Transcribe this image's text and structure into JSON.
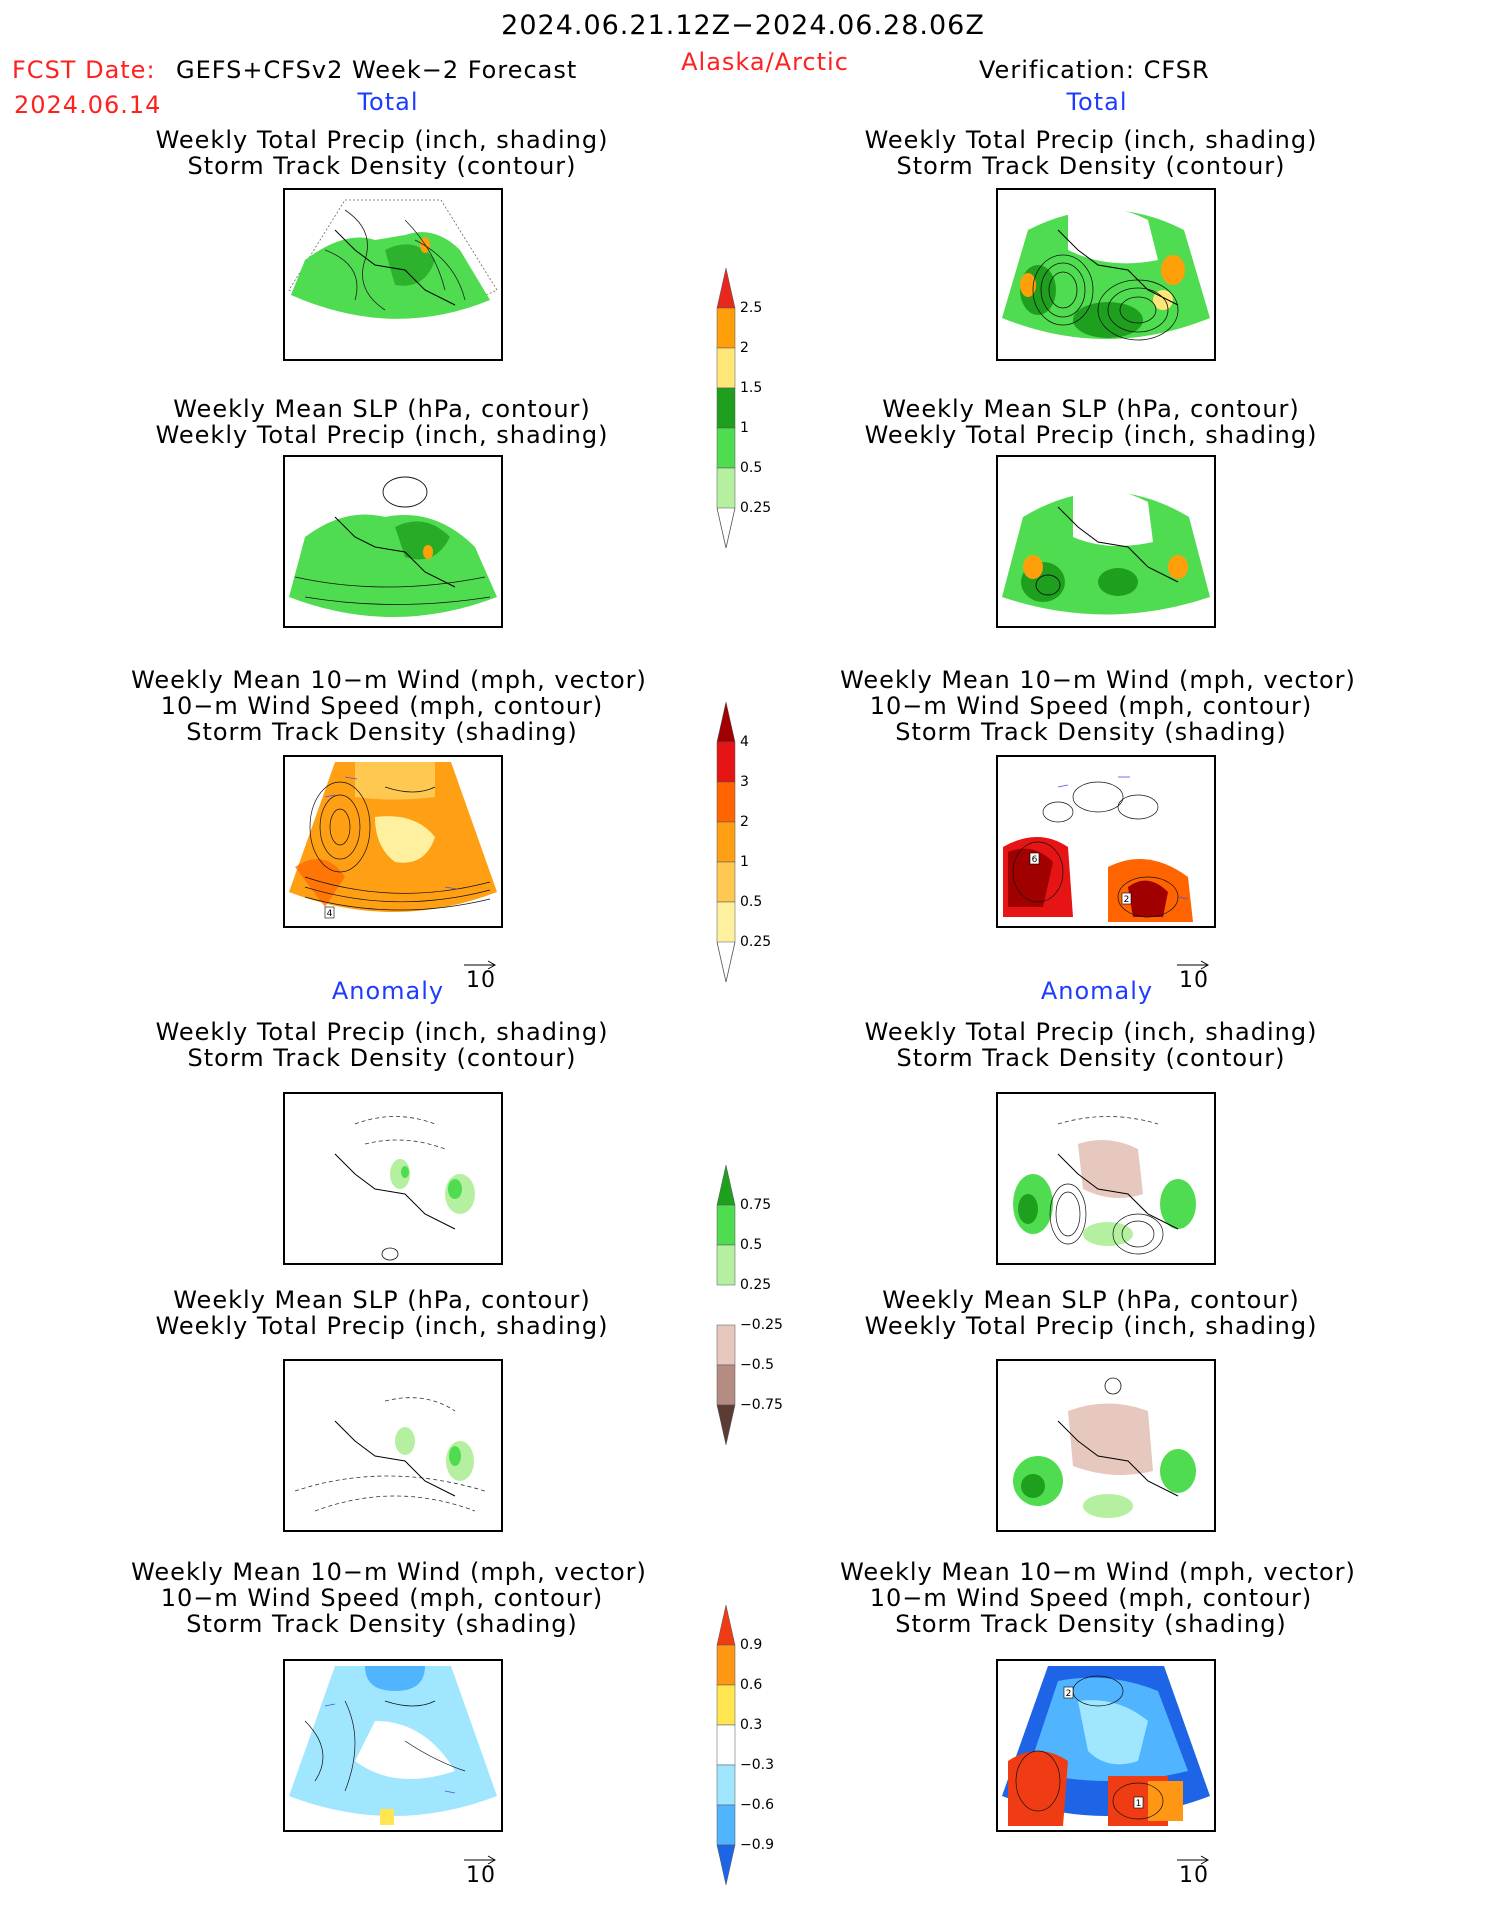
{
  "header": {
    "date_range": "2024.06.21.12Z−2024.06.28.06Z",
    "fcst_label": "FCST Date:",
    "fcst_model": "GEFS+CFSv2 Week−2 Forecast",
    "fcst_date": "2024.06.14",
    "region": "Alaska/Arctic",
    "verification": "Verification: CFSR"
  },
  "sections": {
    "total": "Total",
    "anomaly": "Anomaly"
  },
  "panel_titles": {
    "precip_track": [
      "Weekly Total Precip (inch, shading)",
      "Storm Track Density (contour)"
    ],
    "slp_precip": [
      "Weekly Mean SLP (hPa, contour)",
      "Weekly Total Precip (inch, shading)"
    ],
    "wind_track": [
      "Weekly Mean 10−m Wind (mph, vector)",
      "10−m Wind Speed (mph, contour)",
      "Storm Track Density (shading)"
    ]
  },
  "vector_scale": "10",
  "colorbars": {
    "precip_total": {
      "labels": [
        "2.5",
        "2",
        "1.5",
        "1",
        "0.5",
        "0.25"
      ],
      "colors": [
        "#e8281e",
        "#ffa00a",
        "#ffe678",
        "#1ea01e",
        "#50dc50",
        "#b4f0a0"
      ]
    },
    "track_total": {
      "labels": [
        "4",
        "3",
        "2",
        "1",
        "0.5",
        "0.25"
      ],
      "colors": [
        "#a00000",
        "#e61414",
        "#ff6400",
        "#ffa014",
        "#ffc850",
        "#fff0a0"
      ]
    },
    "precip_anom": {
      "labels": [
        "0.75",
        "0.5",
        "0.25",
        "−0.25",
        "−0.5",
        "−0.75"
      ],
      "colors": [
        "#1ea01e",
        "#50dc50",
        "#b4f0a0",
        "#e6c8be",
        "#b48c82",
        "#82584e",
        "#5a3c32"
      ]
    },
    "track_anom": {
      "labels": [
        "0.9",
        "0.6",
        "0.3",
        "−0.3",
        "−0.6",
        "−0.9"
      ],
      "colors": [
        "#f03c14",
        "#ff9614",
        "#ffe650",
        "#ffffff",
        "#a0e6ff",
        "#50b4ff",
        "#1e64e6"
      ]
    }
  }
}
